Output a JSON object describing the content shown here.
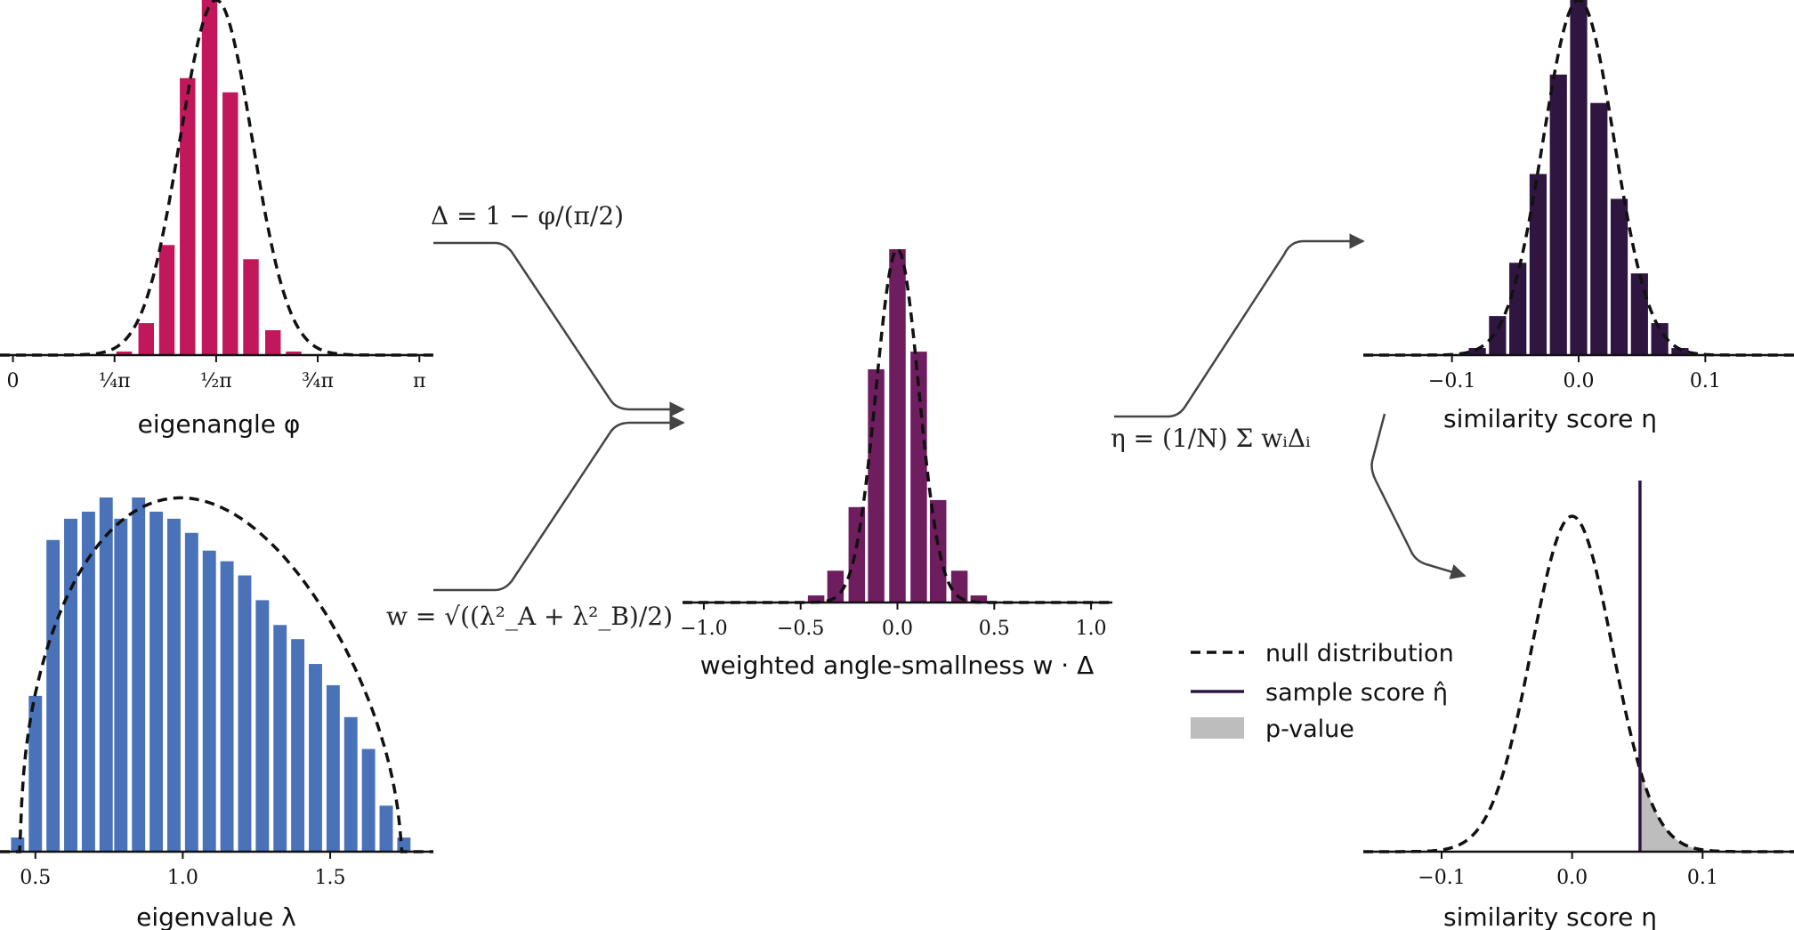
{
  "colors": {
    "angle": "#c2185b",
    "eigenvalue": "#4a72b8",
    "weighted": "#6e1d5e",
    "similarity": "#2f1641",
    "null": "#111111",
    "pvalue": "#bdbdbd",
    "arrow": "#444444"
  },
  "formulas": {
    "delta": "Δ = 1 − φ/(π/2)",
    "w": "w = √((λ²_A + λ²_B)/2)",
    "eta": "η = (1/N) Σ wᵢΔᵢ"
  },
  "legend": {
    "null_label": "null distribution",
    "sample_label": "sample score η̂",
    "pvalue_label": "p-value"
  },
  "chart_data": [
    {
      "id": "eigenangle",
      "type": "bar",
      "xlabel": "eigenangle φ",
      "xticks": [
        "0",
        "¼π",
        "½π",
        "¾π",
        "π"
      ],
      "tick_values": [
        0,
        0.7854,
        1.5708,
        2.3562,
        3.1416
      ],
      "xlim": [
        -0.1,
        3.25
      ],
      "bar_x": [
        0.86,
        1.03,
        1.19,
        1.35,
        1.52,
        1.68,
        1.84,
        2.01,
        2.17
      ],
      "values": [
        0.01,
        0.09,
        0.31,
        0.78,
        1.0,
        0.74,
        0.27,
        0.07,
        0.01
      ],
      "bar_width": 0.12,
      "curve": {
        "type": "gaussian",
        "mu": 1.5708,
        "sigma": 0.28,
        "peak": 1.0
      }
    },
    {
      "id": "eigenvalue",
      "type": "bar",
      "xlabel": "eigenvalue λ",
      "xticks": [
        "0.5",
        "1.0",
        "1.5"
      ],
      "tick_values": [
        0.5,
        1.0,
        1.5
      ],
      "xlim": [
        0.38,
        1.85
      ],
      "bar_x": [
        0.44,
        0.5,
        0.56,
        0.62,
        0.68,
        0.74,
        0.79,
        0.85,
        0.91,
        0.97,
        1.03,
        1.09,
        1.15,
        1.21,
        1.27,
        1.33,
        1.39,
        1.45,
        1.51,
        1.57,
        1.63,
        1.69,
        1.75
      ],
      "values": [
        0.04,
        0.44,
        0.88,
        0.94,
        0.96,
        1.0,
        0.94,
        1.0,
        0.96,
        0.94,
        0.9,
        0.85,
        0.82,
        0.78,
        0.71,
        0.64,
        0.6,
        0.53,
        0.47,
        0.38,
        0.29,
        0.13,
        0.04
      ],
      "bar_width": 0.045,
      "curve": {
        "type": "semicircle",
        "a": 0.45,
        "b": 1.74,
        "peak": 1.0
      }
    },
    {
      "id": "weighted",
      "type": "bar",
      "xlabel": "weighted angle-smallness w · Δ",
      "xticks": [
        "−1.0",
        "−0.5",
        "0.0",
        "0.5",
        "1.0"
      ],
      "tick_values": [
        -1.0,
        -0.5,
        0.0,
        0.5,
        1.0
      ],
      "xlim": [
        -1.11,
        1.11
      ],
      "bar_x": [
        -0.42,
        -0.32,
        -0.21,
        -0.11,
        0.0,
        0.11,
        0.21,
        0.32,
        0.42
      ],
      "values": [
        0.02,
        0.09,
        0.27,
        0.66,
        1.0,
        0.71,
        0.29,
        0.09,
        0.02
      ],
      "bar_width": 0.085,
      "curve": {
        "type": "gaussian",
        "mu": 0.0,
        "sigma": 0.11,
        "peak": 1.0
      }
    },
    {
      "id": "similarity",
      "type": "bar",
      "xlabel": "similarity score η",
      "xticks": [
        "−0.1",
        "0.0",
        "0.1"
      ],
      "tick_values": [
        -0.1,
        0.0,
        0.1
      ],
      "xlim": [
        -0.17,
        0.17
      ],
      "bar_x": [
        -0.08,
        -0.064,
        -0.048,
        -0.032,
        -0.016,
        0.0,
        0.016,
        0.032,
        0.048,
        0.064,
        0.08
      ],
      "values": [
        0.02,
        0.11,
        0.26,
        0.51,
        0.79,
        1.0,
        0.71,
        0.44,
        0.23,
        0.09,
        0.02
      ],
      "bar_width": 0.0135,
      "curve": {
        "type": "gaussian",
        "mu": 0.0,
        "sigma": 0.028,
        "peak": 1.0
      }
    },
    {
      "id": "pvalue",
      "type": "line",
      "xlabel": "similarity score η",
      "xticks": [
        "−0.1",
        "0.0",
        "0.1"
      ],
      "tick_values": [
        -0.1,
        0.0,
        0.1
      ],
      "xlim": [
        -0.16,
        0.17
      ],
      "curve": {
        "type": "gaussian",
        "mu": 0.0,
        "sigma": 0.031,
        "peak": 1.0
      },
      "sample_score": 0.052
    }
  ]
}
